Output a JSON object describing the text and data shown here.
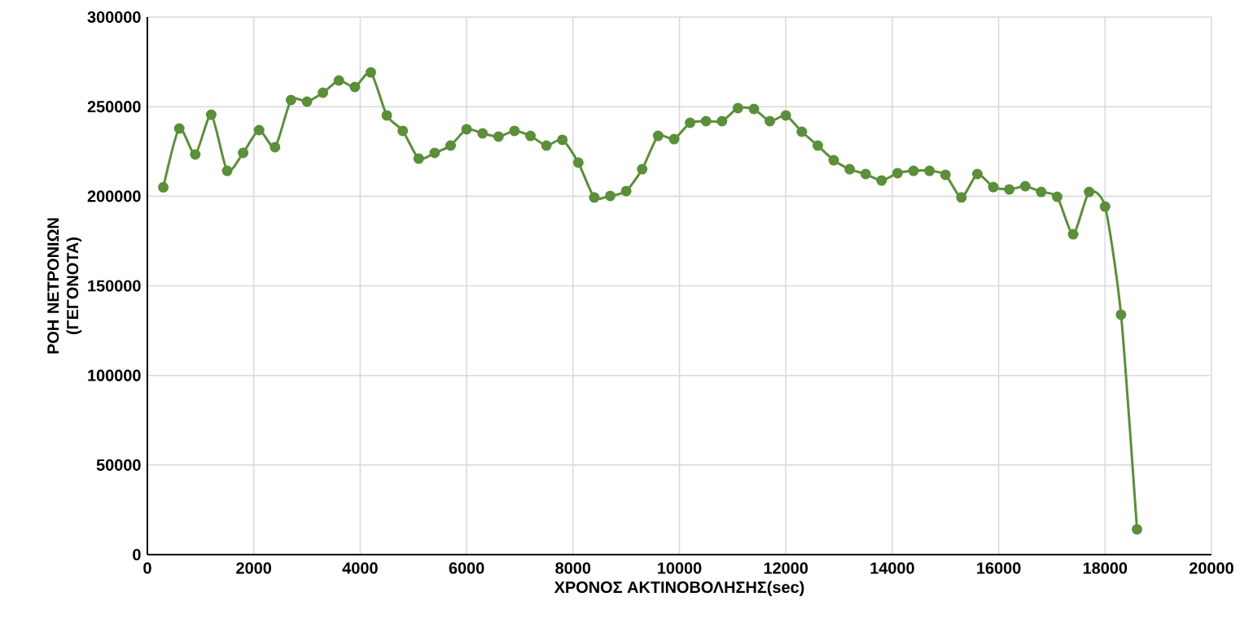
{
  "chart_data": {
    "type": "line",
    "xlabel": "ΧΡΟΝΟΣ ΑΚΤΙΝΟΒΟΛΗΣΗΣ(sec)",
    "ylabel": "ΡΟΗ ΝΕΤΡΟΝΙΩΝ (ΓΕΓΟΝΟΤΑ)",
    "x": [
      300,
      600,
      900,
      1200,
      1500,
      1800,
      2100,
      2400,
      2700,
      3000,
      3300,
      3600,
      3900,
      4200,
      4500,
      4800,
      5100,
      5400,
      5700,
      6000,
      6300,
      6600,
      6900,
      7200,
      7500,
      7800,
      8100,
      8400,
      8700,
      9000,
      9300,
      9600,
      9900,
      10200,
      10500,
      10800,
      11100,
      11400,
      11700,
      12000,
      12300,
      12600,
      12900,
      13200,
      13500,
      13800,
      14100,
      14400,
      14700,
      15000,
      15300,
      15600,
      15900,
      16200,
      16500,
      16800,
      17100,
      17400,
      17700,
      18000,
      18300,
      18600
    ],
    "series": [
      {
        "color": "#5b8f3a",
        "values": [
          205000,
          237800,
          223300,
          245500,
          214200,
          224200,
          236900,
          227400,
          253700,
          252800,
          257800,
          264600,
          261000,
          269100,
          245100,
          236500,
          221000,
          224200,
          228300,
          237400,
          235100,
          233300,
          236500,
          233700,
          228300,
          231500,
          218800,
          199300,
          200200,
          202900,
          215100,
          233700,
          231900,
          241000,
          241900,
          241900,
          249200,
          248700,
          241900,
          245100,
          236000,
          228300,
          220100,
          215100,
          212400,
          208800,
          212900,
          214200,
          214200,
          212000,
          199300,
          212400,
          205100,
          203800,
          205600,
          202400,
          199700,
          178800,
          202400,
          194200,
          133900,
          14100
        ]
      }
    ],
    "xlim": [
      0,
      20000
    ],
    "xticks": [
      0,
      2000,
      4000,
      6000,
      8000,
      10000,
      12000,
      14000,
      16000,
      18000,
      20000
    ],
    "ylim": [
      0,
      300000
    ],
    "yticks": [
      0,
      50000,
      100000,
      150000,
      200000,
      250000,
      300000
    ],
    "grid": true,
    "marker": "circle",
    "line_style": "solid"
  }
}
